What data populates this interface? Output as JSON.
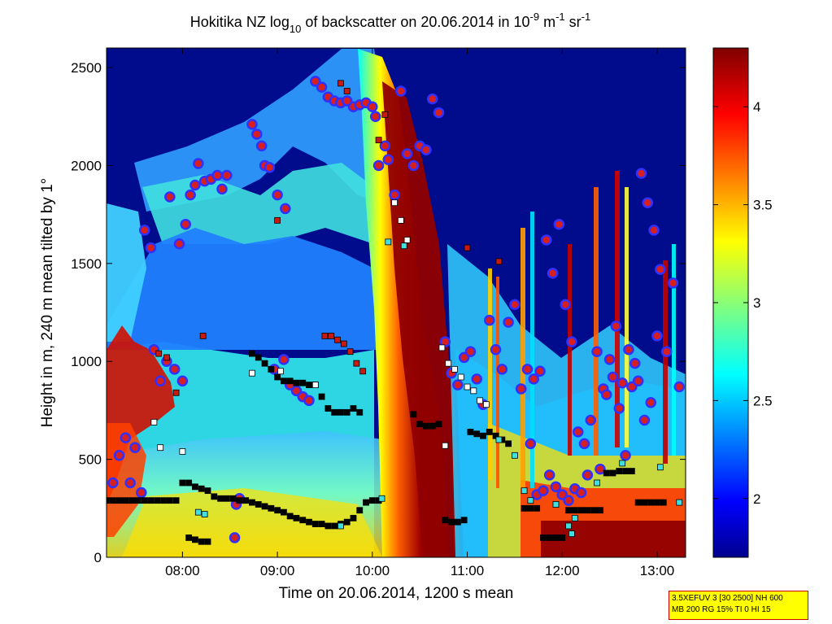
{
  "chart_data": {
    "type": "heatmap",
    "title_main": "Hokitika NZ log",
    "title_sub": "10",
    "title_mid": " of backscatter on 20.06.2014 in 10",
    "title_sup1": "-9",
    "title_m": " m",
    "title_sup2": "-1",
    "title_sr": " sr",
    "title_sup3": "-1",
    "xlabel": "Time on 20.06.2014, 1200 s mean",
    "ylabel": "Height in m, 240 m mean tilted by 1°",
    "xlim": [
      "07:12",
      "13:18"
    ],
    "ylim": [
      0,
      2600
    ],
    "x_ticks": [
      "08:00",
      "09:00",
      "10:00",
      "11:00",
      "12:00",
      "13:00"
    ],
    "y_ticks": [
      "0",
      "500",
      "1000",
      "1500",
      "2000",
      "2500"
    ],
    "colorbar": {
      "range": [
        1.7,
        4.3
      ],
      "ticks": [
        "2",
        "2.5",
        "3",
        "3.5",
        "4"
      ],
      "colormap": "jet"
    },
    "colors": {
      "background_field": "#000c8c",
      "circle_marker_fill": "#d81f1f",
      "circle_marker_edge": "#3030ff",
      "square_black": "#000000",
      "square_cyan": "#40e0e0",
      "square_white": "#ffffff",
      "square_red": "#c81a10"
    },
    "series": [
      {
        "marker": "circle",
        "points": [
          [
            "07:16",
            380
          ],
          [
            "07:20",
            520
          ],
          [
            "07:24",
            610
          ],
          [
            "07:27",
            380
          ],
          [
            "07:30",
            560
          ],
          [
            "07:34",
            330
          ],
          [
            "07:36",
            1670
          ],
          [
            "07:40",
            1580
          ],
          [
            "07:42",
            1060
          ],
          [
            "07:46",
            900
          ],
          [
            "07:50",
            1000
          ],
          [
            "07:52",
            1840
          ],
          [
            "07:55",
            960
          ],
          [
            "07:58",
            1600
          ],
          [
            "08:00",
            900
          ],
          [
            "08:02",
            1700
          ],
          [
            "08:05",
            1850
          ],
          [
            "08:08",
            1900
          ],
          [
            "08:10",
            2010
          ],
          [
            "08:14",
            1920
          ],
          [
            "08:18",
            1930
          ],
          [
            "08:22",
            1950
          ],
          [
            "08:25",
            1880
          ],
          [
            "08:28",
            1950
          ],
          [
            "08:33",
            100
          ],
          [
            "08:34",
            270
          ],
          [
            "08:36",
            300
          ],
          [
            "08:44",
            2210
          ],
          [
            "08:47",
            2160
          ],
          [
            "08:50",
            2100
          ],
          [
            "08:52",
            2000
          ],
          [
            "08:55",
            1990
          ],
          [
            "09:00",
            1850
          ],
          [
            "09:05",
            1780
          ],
          [
            "08:58",
            960
          ],
          [
            "09:04",
            1010
          ],
          [
            "09:08",
            880
          ],
          [
            "09:12",
            850
          ],
          [
            "09:16",
            820
          ],
          [
            "09:20",
            800
          ],
          [
            "09:24",
            2430
          ],
          [
            "09:28",
            2400
          ],
          [
            "09:32",
            2350
          ],
          [
            "09:36",
            2330
          ],
          [
            "09:40",
            2320
          ],
          [
            "09:44",
            2330
          ],
          [
            "09:48",
            2300
          ],
          [
            "09:52",
            2310
          ],
          [
            "09:56",
            2320
          ],
          [
            "10:00",
            2300
          ],
          [
            "10:02",
            2250
          ],
          [
            "10:04",
            2000
          ],
          [
            "10:08",
            2100
          ],
          [
            "10:10",
            2030
          ],
          [
            "10:14",
            1850
          ],
          [
            "10:18",
            2380
          ],
          [
            "10:22",
            2060
          ],
          [
            "10:26",
            2000
          ],
          [
            "10:30",
            2100
          ],
          [
            "10:34",
            2080
          ],
          [
            "10:38",
            2340
          ],
          [
            "10:42",
            2270
          ],
          [
            "10:46",
            1100
          ],
          [
            "10:50",
            940
          ],
          [
            "10:54",
            880
          ],
          [
            "10:58",
            1020
          ],
          [
            "11:02",
            1050
          ],
          [
            "11:06",
            910
          ],
          [
            "11:10",
            780
          ],
          [
            "11:14",
            1210
          ],
          [
            "11:18",
            1060
          ],
          [
            "11:22",
            960
          ],
          [
            "11:26",
            1200
          ],
          [
            "11:30",
            1290
          ],
          [
            "11:34",
            860
          ],
          [
            "11:38",
            960
          ],
          [
            "11:42",
            910
          ],
          [
            "11:46",
            950
          ],
          [
            "11:50",
            1620
          ],
          [
            "11:54",
            1450
          ],
          [
            "11:58",
            1700
          ],
          [
            "12:02",
            1290
          ],
          [
            "12:06",
            1100
          ],
          [
            "12:10",
            640
          ],
          [
            "12:14",
            580
          ],
          [
            "12:18",
            700
          ],
          [
            "12:22",
            1050
          ],
          [
            "12:26",
            860
          ],
          [
            "12:30",
            1010
          ],
          [
            "12:34",
            1180
          ],
          [
            "12:38",
            890
          ],
          [
            "12:42",
            1060
          ],
          [
            "12:46",
            990
          ],
          [
            "12:50",
            1960
          ],
          [
            "12:54",
            1810
          ],
          [
            "12:58",
            1670
          ],
          [
            "13:02",
            1470
          ],
          [
            "13:06",
            1050
          ],
          [
            "13:10",
            1400
          ],
          [
            "13:14",
            870
          ],
          [
            "11:40",
            580
          ],
          [
            "11:44",
            320
          ],
          [
            "11:48",
            340
          ],
          [
            "11:52",
            420
          ],
          [
            "11:56",
            360
          ],
          [
            "12:00",
            320
          ],
          [
            "12:04",
            290
          ],
          [
            "12:08",
            350
          ],
          [
            "12:12",
            330
          ],
          [
            "12:16",
            420
          ],
          [
            "12:24",
            450
          ],
          [
            "12:28",
            830
          ],
          [
            "12:32",
            920
          ],
          [
            "12:36",
            760
          ],
          [
            "12:40",
            520
          ],
          [
            "12:44",
            870
          ],
          [
            "12:48",
            900
          ],
          [
            "12:52",
            700
          ],
          [
            "12:56",
            790
          ],
          [
            "13:00",
            1130
          ]
        ]
      },
      {
        "marker": "square-black",
        "points": [
          [
            "07:12",
            290
          ],
          [
            "07:16",
            290
          ],
          [
            "07:20",
            290
          ],
          [
            "07:24",
            290
          ],
          [
            "07:28",
            290
          ],
          [
            "07:32",
            290
          ],
          [
            "07:36",
            290
          ],
          [
            "07:40",
            290
          ],
          [
            "07:44",
            290
          ],
          [
            "07:48",
            290
          ],
          [
            "07:52",
            290
          ],
          [
            "07:56",
            290
          ],
          [
            "08:00",
            380
          ],
          [
            "08:04",
            380
          ],
          [
            "08:08",
            360
          ],
          [
            "08:12",
            350
          ],
          [
            "08:16",
            340
          ],
          [
            "08:20",
            310
          ],
          [
            "08:24",
            300
          ],
          [
            "08:28",
            300
          ],
          [
            "08:32",
            300
          ],
          [
            "08:36",
            290
          ],
          [
            "08:40",
            290
          ],
          [
            "08:44",
            280
          ],
          [
            "08:48",
            270
          ],
          [
            "08:52",
            260
          ],
          [
            "08:56",
            250
          ],
          [
            "09:00",
            240
          ],
          [
            "09:04",
            230
          ],
          [
            "09:08",
            210
          ],
          [
            "09:12",
            200
          ],
          [
            "09:16",
            190
          ],
          [
            "09:20",
            180
          ],
          [
            "09:24",
            170
          ],
          [
            "09:28",
            170
          ],
          [
            "09:32",
            160
          ],
          [
            "09:36",
            160
          ],
          [
            "09:40",
            170
          ],
          [
            "09:44",
            180
          ],
          [
            "09:48",
            200
          ],
          [
            "09:52",
            240
          ],
          [
            "09:56",
            280
          ],
          [
            "10:00",
            290
          ],
          [
            "10:04",
            290
          ],
          [
            "08:44",
            1040
          ],
          [
            "08:48",
            1020
          ],
          [
            "08:52",
            990
          ],
          [
            "08:56",
            960
          ],
          [
            "09:00",
            920
          ],
          [
            "09:04",
            900
          ],
          [
            "09:08",
            900
          ],
          [
            "09:12",
            890
          ],
          [
            "09:16",
            890
          ],
          [
            "09:20",
            880
          ],
          [
            "09:24",
            880
          ],
          [
            "09:28",
            820
          ],
          [
            "09:32",
            760
          ],
          [
            "09:36",
            740
          ],
          [
            "09:40",
            740
          ],
          [
            "09:44",
            740
          ],
          [
            "09:48",
            760
          ],
          [
            "09:52",
            740
          ],
          [
            "10:26",
            730
          ],
          [
            "10:30",
            680
          ],
          [
            "10:34",
            670
          ],
          [
            "10:38",
            670
          ],
          [
            "10:42",
            680
          ],
          [
            "10:46",
            190
          ],
          [
            "10:50",
            180
          ],
          [
            "10:54",
            180
          ],
          [
            "10:58",
            190
          ],
          [
            "11:02",
            640
          ],
          [
            "11:06",
            630
          ],
          [
            "11:10",
            620
          ],
          [
            "11:14",
            640
          ],
          [
            "11:18",
            620
          ],
          [
            "11:22",
            600
          ],
          [
            "11:26",
            580
          ],
          [
            "11:36",
            250
          ],
          [
            "11:40",
            250
          ],
          [
            "11:44",
            250
          ],
          [
            "11:48",
            100
          ],
          [
            "11:52",
            100
          ],
          [
            "11:56",
            100
          ],
          [
            "12:00",
            100
          ],
          [
            "12:04",
            240
          ],
          [
            "12:08",
            240
          ],
          [
            "12:12",
            240
          ],
          [
            "12:16",
            240
          ],
          [
            "12:20",
            240
          ],
          [
            "12:24",
            240
          ],
          [
            "12:28",
            430
          ],
          [
            "12:32",
            430
          ],
          [
            "12:36",
            440
          ],
          [
            "12:40",
            440
          ],
          [
            "12:44",
            440
          ],
          [
            "12:48",
            280
          ],
          [
            "12:52",
            280
          ],
          [
            "12:56",
            280
          ],
          [
            "13:00",
            280
          ],
          [
            "13:04",
            280
          ],
          [
            "08:04",
            100
          ],
          [
            "08:08",
            90
          ],
          [
            "08:12",
            80
          ],
          [
            "08:16",
            80
          ]
        ]
      },
      {
        "marker": "square-red",
        "points": [
          [
            "08:13",
            1130
          ],
          [
            "09:30",
            1130
          ],
          [
            "09:34",
            1130
          ],
          [
            "09:38",
            1110
          ],
          [
            "09:42",
            1090
          ],
          [
            "09:46",
            1050
          ],
          [
            "09:50",
            990
          ],
          [
            "09:54",
            950
          ],
          [
            "09:40",
            2420
          ],
          [
            "09:44",
            2380
          ],
          [
            "10:04",
            2130
          ],
          [
            "10:08",
            2260
          ],
          [
            "09:00",
            1720
          ],
          [
            "11:20",
            1510
          ],
          [
            "11:00",
            1580
          ],
          [
            "07:45",
            1040
          ],
          [
            "07:50",
            1020
          ],
          [
            "07:56",
            840
          ]
        ]
      },
      {
        "marker": "square-white",
        "points": [
          [
            "10:14",
            1810
          ],
          [
            "10:18",
            1720
          ],
          [
            "10:22",
            1620
          ],
          [
            "10:44",
            1070
          ],
          [
            "10:48",
            990
          ],
          [
            "10:52",
            960
          ],
          [
            "10:56",
            920
          ],
          [
            "11:00",
            870
          ],
          [
            "11:04",
            850
          ],
          [
            "11:08",
            800
          ],
          [
            "11:12",
            780
          ],
          [
            "10:46",
            570
          ],
          [
            "07:42",
            690
          ],
          [
            "07:46",
            560
          ],
          [
            "08:00",
            540
          ],
          [
            "08:44",
            940
          ],
          [
            "09:02",
            950
          ],
          [
            "09:24",
            880
          ]
        ]
      },
      {
        "marker": "square-cyan",
        "points": [
          [
            "10:10",
            1610
          ],
          [
            "10:20",
            1590
          ],
          [
            "11:20",
            600
          ],
          [
            "11:30",
            520
          ],
          [
            "11:36",
            340
          ],
          [
            "11:40",
            290
          ],
          [
            "11:56",
            270
          ],
          [
            "12:04",
            160
          ],
          [
            "12:06",
            120
          ],
          [
            "12:08",
            200
          ],
          [
            "12:22",
            380
          ],
          [
            "12:38",
            480
          ],
          [
            "13:02",
            460
          ],
          [
            "13:14",
            280
          ],
          [
            "08:10",
            230
          ],
          [
            "08:14",
            220
          ],
          [
            "09:40",
            160
          ],
          [
            "10:06",
            300
          ]
        ]
      }
    ]
  },
  "info_box": {
    "line1": "3.5XEFUV 3 [30 2500] NH 600",
    "line2": "MB 200 RG 15% TI 0 HI 15"
  }
}
